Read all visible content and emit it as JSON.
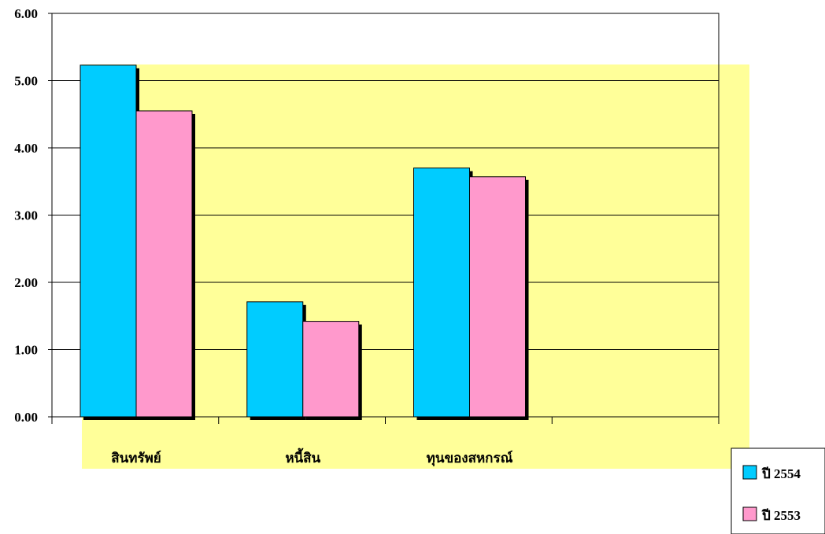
{
  "chart_data": {
    "type": "bar",
    "categories": [
      "สินทรัพย์",
      "หนี้สิน",
      "ทุนของสหกรณ์",
      ""
    ],
    "series": [
      {
        "name": "ปี 2554",
        "values": [
          5.23,
          1.71,
          3.7,
          null
        ],
        "color": "#00ccff"
      },
      {
        "name": "ปี 2553",
        "values": [
          4.55,
          1.42,
          3.57,
          null
        ],
        "color": "#ff99cc"
      }
    ],
    "y_ticks": [
      "0.00",
      "1.00",
      "2.00",
      "3.00",
      "4.00",
      "5.00",
      "6.00"
    ],
    "ylim": [
      0,
      6
    ],
    "grid": true,
    "background_band_color": "#ffff99",
    "legend_position": "bottom-right"
  }
}
